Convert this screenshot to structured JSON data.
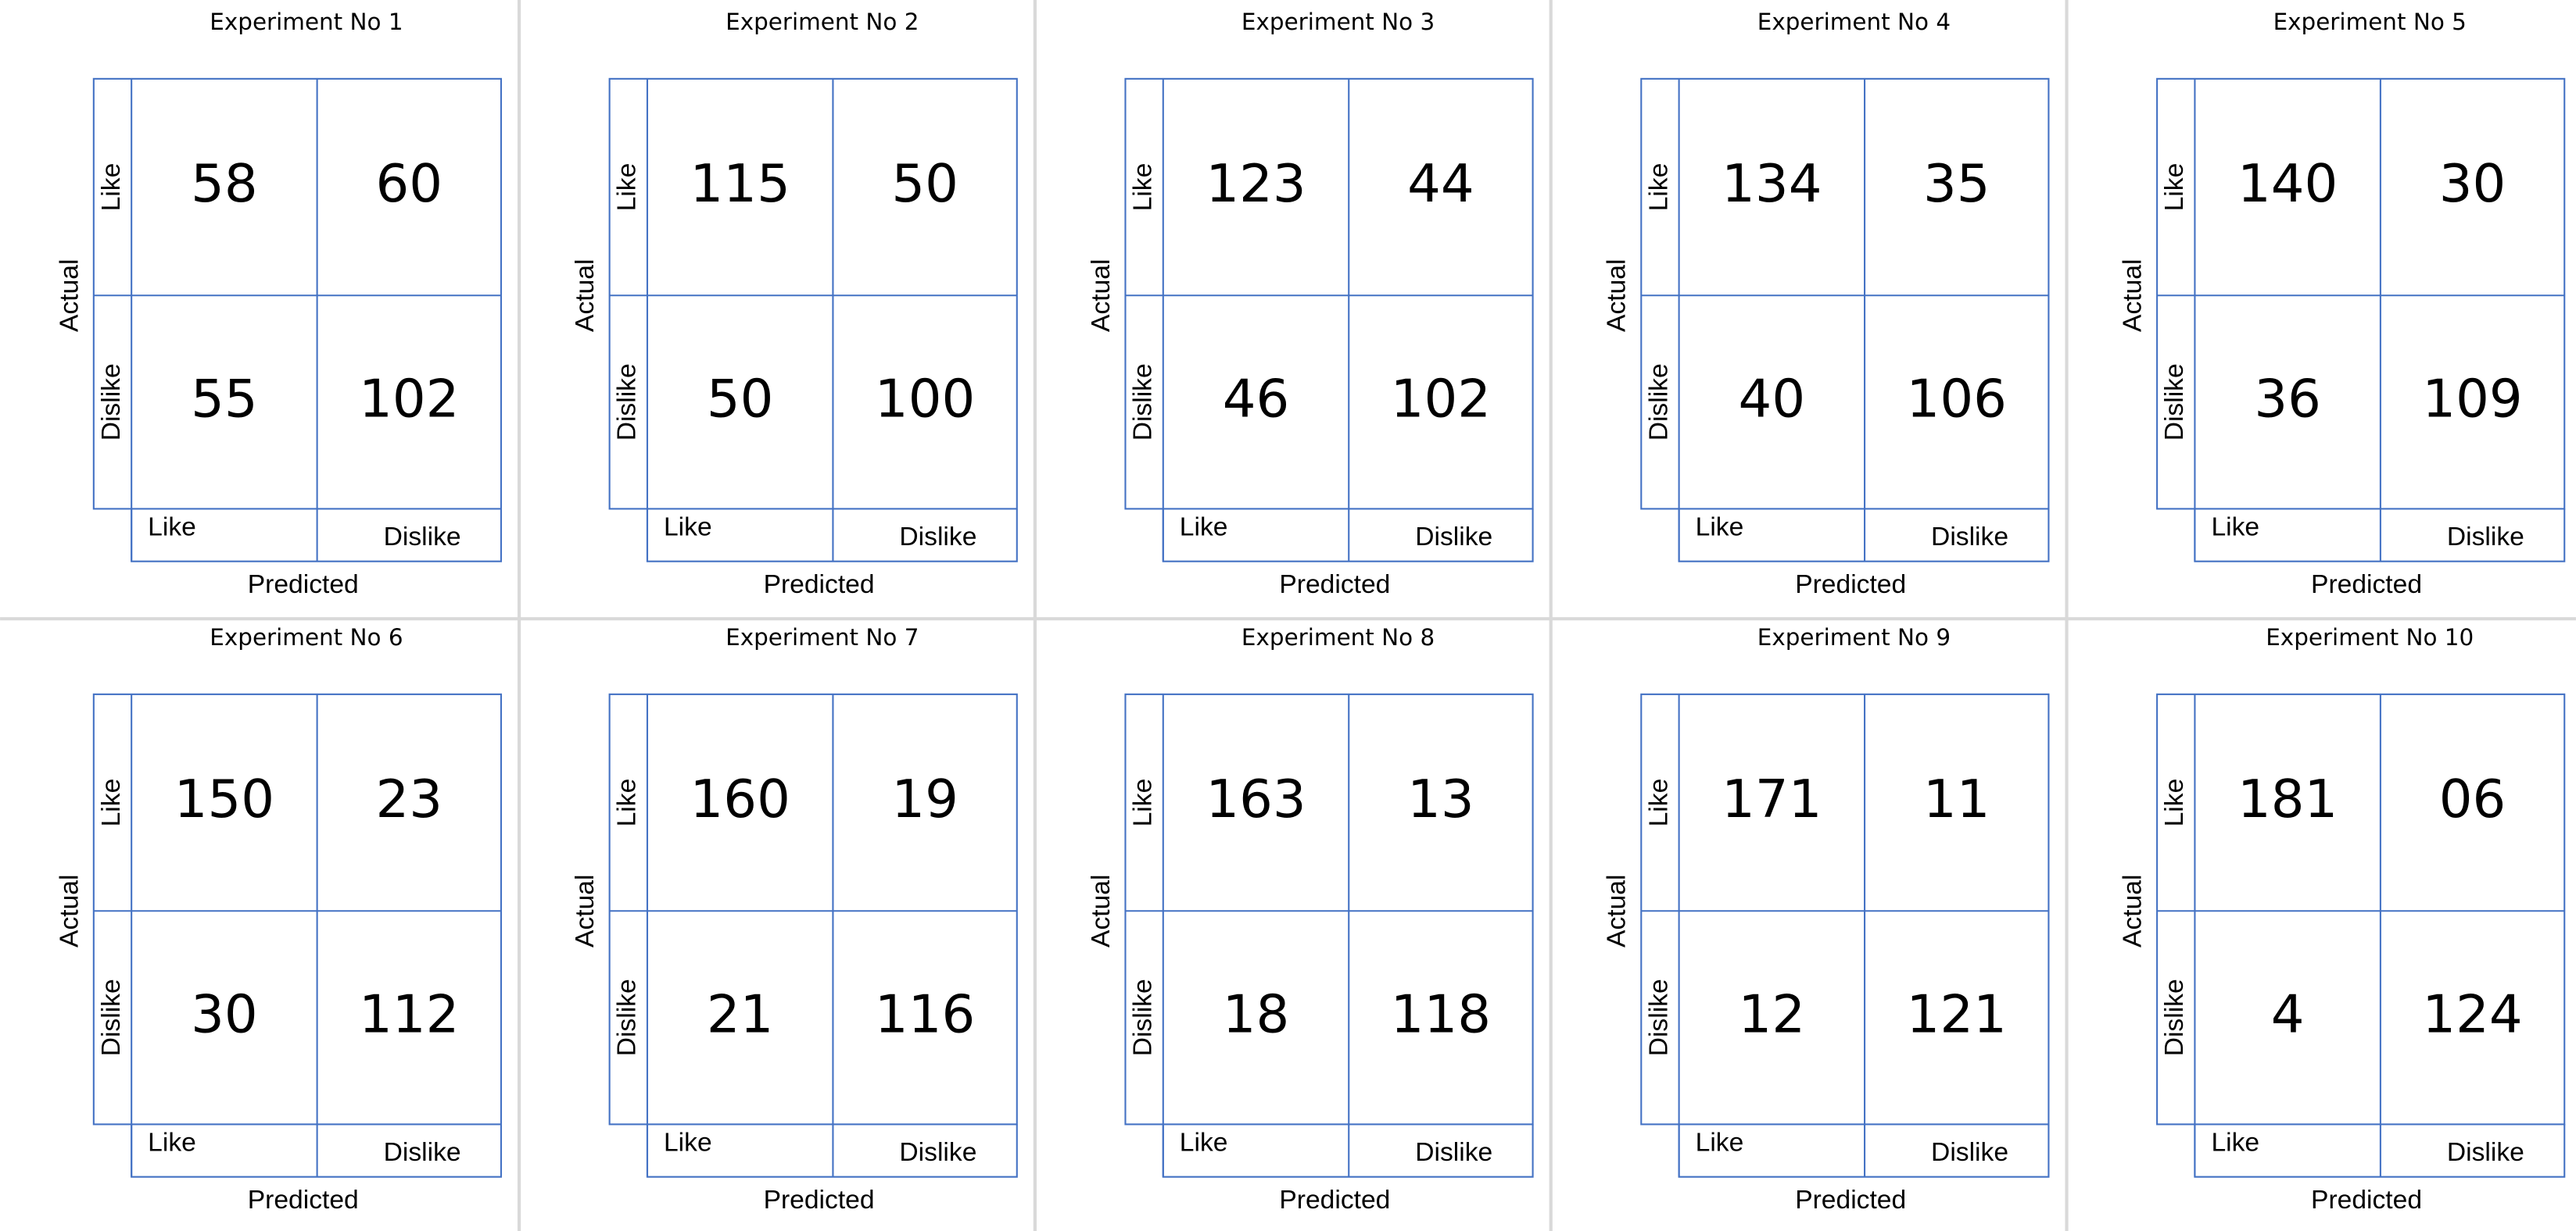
{
  "panels": [
    {
      "title": "Experiment No 1",
      "actual": "Actual",
      "predicted": "Predicted",
      "row_labels": [
        "Like",
        "Dislike"
      ],
      "col_labels": [
        "Like",
        "Dislike"
      ],
      "cells": [
        [
          "58",
          "60"
        ],
        [
          "55",
          "102"
        ]
      ]
    },
    {
      "title": "Experiment No 2",
      "actual": "Actual",
      "predicted": "Predicted",
      "row_labels": [
        "Like",
        "Dislike"
      ],
      "col_labels": [
        "Like",
        "Dislike"
      ],
      "cells": [
        [
          "115",
          "50"
        ],
        [
          "50",
          "100"
        ]
      ]
    },
    {
      "title": "Experiment No 3",
      "actual": "Actual",
      "predicted": "Predicted",
      "row_labels": [
        "Like",
        "Dislike"
      ],
      "col_labels": [
        "Like",
        "Dislike"
      ],
      "cells": [
        [
          "123",
          "44"
        ],
        [
          "46",
          "102"
        ]
      ]
    },
    {
      "title": "Experiment No 4",
      "actual": "Actual",
      "predicted": "Predicted",
      "row_labels": [
        "Like",
        "Dislike"
      ],
      "col_labels": [
        "Like",
        "Dislike"
      ],
      "cells": [
        [
          "134",
          "35"
        ],
        [
          "40",
          "106"
        ]
      ]
    },
    {
      "title": "Experiment No 5",
      "actual": "Actual",
      "predicted": "Predicted",
      "row_labels": [
        "Like",
        "Dislike"
      ],
      "col_labels": [
        "Like",
        "Dislike"
      ],
      "cells": [
        [
          "140",
          "30"
        ],
        [
          "36",
          "109"
        ]
      ]
    },
    {
      "title": "Experiment No 6",
      "actual": "Actual",
      "predicted": "Predicted",
      "row_labels": [
        "Like",
        "Dislike"
      ],
      "col_labels": [
        "Like",
        "Dislike"
      ],
      "cells": [
        [
          "150",
          "23"
        ],
        [
          "30",
          "112"
        ]
      ]
    },
    {
      "title": "Experiment No 7",
      "actual": "Actual",
      "predicted": "Predicted",
      "row_labels": [
        "Like",
        "Dislike"
      ],
      "col_labels": [
        "Like",
        "Dislike"
      ],
      "cells": [
        [
          "160",
          "19"
        ],
        [
          "21",
          "116"
        ]
      ]
    },
    {
      "title": "Experiment No 8",
      "actual": "Actual",
      "predicted": "Predicted",
      "row_labels": [
        "Like",
        "Dislike"
      ],
      "col_labels": [
        "Like",
        "Dislike"
      ],
      "cells": [
        [
          "163",
          "13"
        ],
        [
          "18",
          "118"
        ]
      ]
    },
    {
      "title": "Experiment No 9",
      "actual": "Actual",
      "predicted": "Predicted",
      "row_labels": [
        "Like",
        "Dislike"
      ],
      "col_labels": [
        "Like",
        "Dislike"
      ],
      "cells": [
        [
          "171",
          "11"
        ],
        [
          "12",
          "121"
        ]
      ]
    },
    {
      "title": "Experiment No 10",
      "actual": "Actual",
      "predicted": "Predicted",
      "row_labels": [
        "Like",
        "Dislike"
      ],
      "col_labels": [
        "Like",
        "Dislike"
      ],
      "cells": [
        [
          "181",
          "06"
        ],
        [
          "4",
          "124"
        ]
      ]
    }
  ]
}
